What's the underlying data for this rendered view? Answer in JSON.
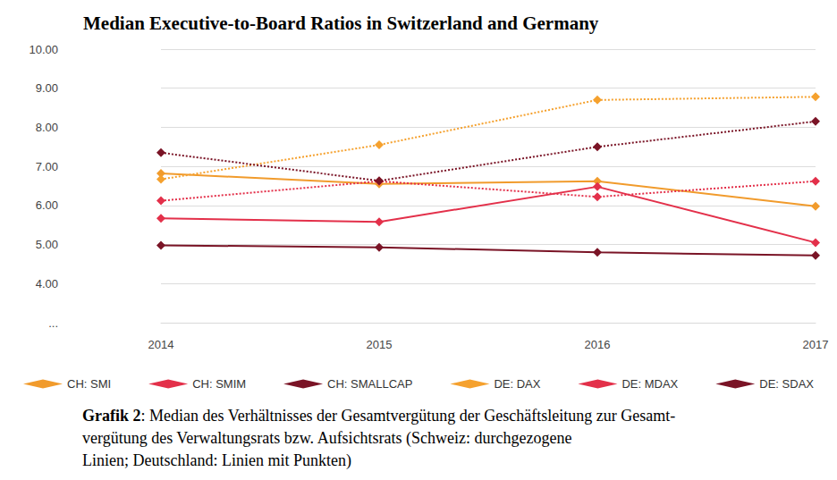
{
  "chart_data": {
    "type": "line",
    "title": "Median Executive-to-Board Ratios in Switzerland and Germany",
    "categories": [
      "2014",
      "2015",
      "2016",
      "2017"
    ],
    "series": [
      {
        "name": "CH: SMI",
        "color": "#f19b2c",
        "line_style": "solid",
        "marker": "diamond",
        "values": [
          6.82,
          6.55,
          6.62,
          5.98
        ]
      },
      {
        "name": "CH: SMIM",
        "color": "#e3304a",
        "line_style": "solid",
        "marker": "diamond",
        "values": [
          5.67,
          5.58,
          6.48,
          5.05
        ]
      },
      {
        "name": "CH: SMALLCAP",
        "color": "#7a1426",
        "line_style": "solid",
        "marker": "diamond",
        "values": [
          4.98,
          4.93,
          4.8,
          4.72
        ]
      },
      {
        "name": "DE: DAX",
        "color": "#f5a12e",
        "line_style": "dotted",
        "marker": "diamond",
        "values": [
          6.67,
          7.55,
          8.7,
          8.78
        ]
      },
      {
        "name": "DE: MDAX",
        "color": "#e3304a",
        "line_style": "dotted",
        "marker": "diamond",
        "values": [
          6.12,
          6.62,
          6.22,
          6.62
        ]
      },
      {
        "name": "DE: SDAX",
        "color": "#7a1426",
        "line_style": "dotted",
        "marker": "diamond",
        "values": [
          7.35,
          6.63,
          7.5,
          8.15
        ]
      }
    ],
    "ylim": [
      3,
      10
    ],
    "yticks": [
      {
        "value": 3,
        "label": "..."
      },
      {
        "value": 4,
        "label": "4.00"
      },
      {
        "value": 5,
        "label": "5.00"
      },
      {
        "value": 6,
        "label": "6.00"
      },
      {
        "value": 7,
        "label": "7.00"
      },
      {
        "value": 8,
        "label": "8.00"
      },
      {
        "value": 9,
        "label": "9.00"
      },
      {
        "value": 10,
        "label": "10.00"
      }
    ],
    "grid": true,
    "legend": "bottom",
    "caption": {
      "label": "Grafik 2",
      "lines": [
        ": Median des Verhältnisses der Gesamtvergütung der Geschäftsleitung zur Gesamt-",
        "vergütung des Verwaltungsrats bzw. Aufsichtsrats (Schweiz: durchgezogene",
        "Linien; Deutschland: Linien mit Punkten)"
      ]
    }
  }
}
